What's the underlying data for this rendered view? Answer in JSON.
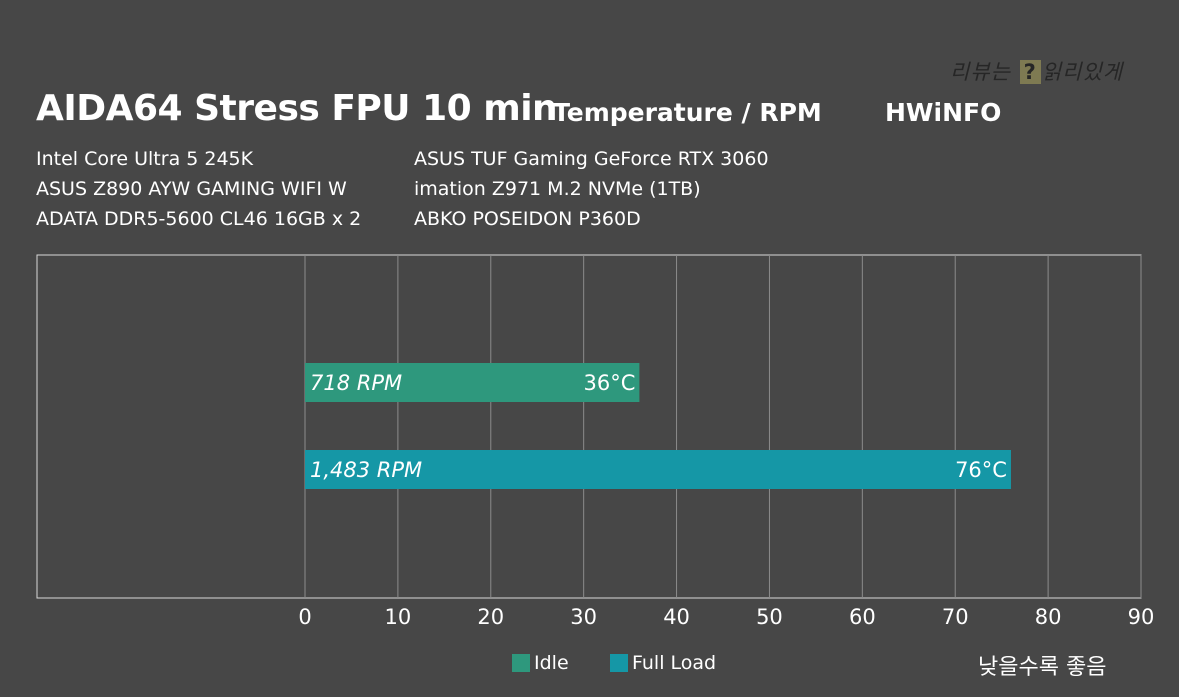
{
  "header": {
    "title": "AIDA64 Stress FPU 10 min",
    "subtitle": "Temperature / RPM",
    "source": "HWiNFO",
    "watermark_pre": "리뷰는",
    "watermark_mark": "?",
    "watermark_post": "읽리있게"
  },
  "specs": {
    "left": [
      "Intel Core Ultra 5 245K",
      "ASUS Z890 AYW GAMING WIFI W",
      "ADATA DDR5-5600 CL46 16GB x 2"
    ],
    "right": [
      "ASUS TUF Gaming GeForce RTX 3060",
      "imation Z971 M.2 NVMe (1TB)",
      "ABKO POSEIDON P360D"
    ]
  },
  "colors": {
    "idle": "#2e987d",
    "full_load": "#1597a6",
    "background": "#474747"
  },
  "chart_data": {
    "type": "bar",
    "orientation": "horizontal",
    "categories": [
      "Idle",
      "Full Load"
    ],
    "series": [
      {
        "name": "Idle",
        "value": 36,
        "value_label": "36°C",
        "rpm_label": "718 RPM"
      },
      {
        "name": "Full Load",
        "value": 76,
        "value_label": "76°C",
        "rpm_label": "1,483 RPM"
      }
    ],
    "xlim": [
      0,
      90
    ],
    "xticks": [
      0,
      10,
      20,
      30,
      40,
      50,
      60,
      70,
      80,
      90
    ],
    "grid": true,
    "legend_position": "bottom"
  },
  "legend": {
    "idle": "Idle",
    "full_load": "Full Load"
  },
  "note": "낮을수록 좋음"
}
